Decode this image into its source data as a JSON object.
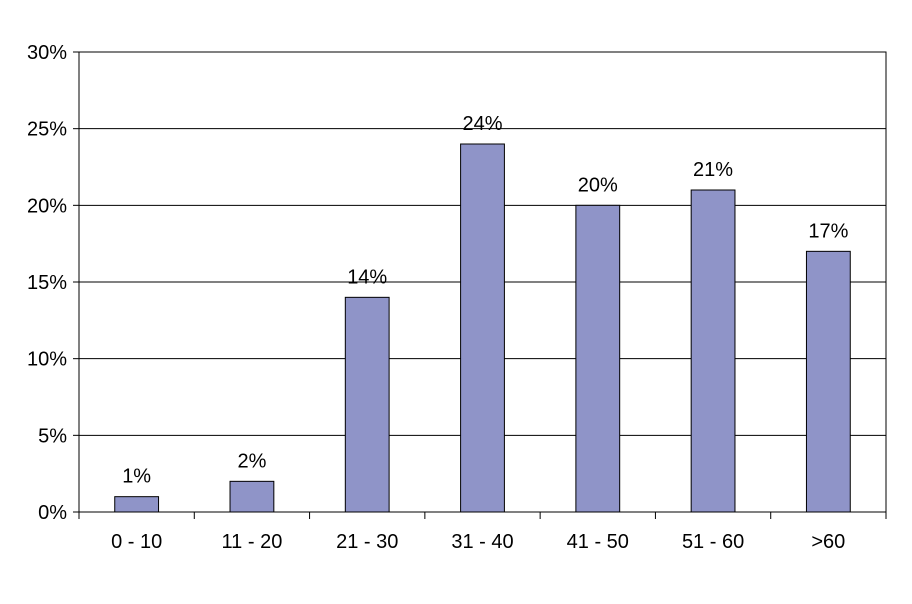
{
  "chart_data": {
    "type": "bar",
    "title": "",
    "xlabel": "",
    "ylabel": "",
    "categories": [
      "0 - 10",
      "11 - 20",
      "21 - 30",
      "31 - 40",
      "41 - 50",
      "51 - 60",
      ">60"
    ],
    "values": [
      1,
      2,
      14,
      24,
      20,
      21,
      17
    ],
    "data_labels": [
      "1%",
      "2%",
      "14%",
      "24%",
      "20%",
      "21%",
      "17%"
    ],
    "ylim": [
      0,
      30
    ],
    "yticks": [
      0,
      5,
      10,
      15,
      20,
      25,
      30
    ],
    "ytick_labels": [
      "0%",
      "5%",
      "10%",
      "15%",
      "20%",
      "25%",
      "30%"
    ],
    "grid": true,
    "legend": "none",
    "colors": {
      "bar_fill": "#8f94c8",
      "bar_stroke": "#000000",
      "grid": "#000000",
      "plot_border": "#000000",
      "background": "#ffffff"
    }
  }
}
